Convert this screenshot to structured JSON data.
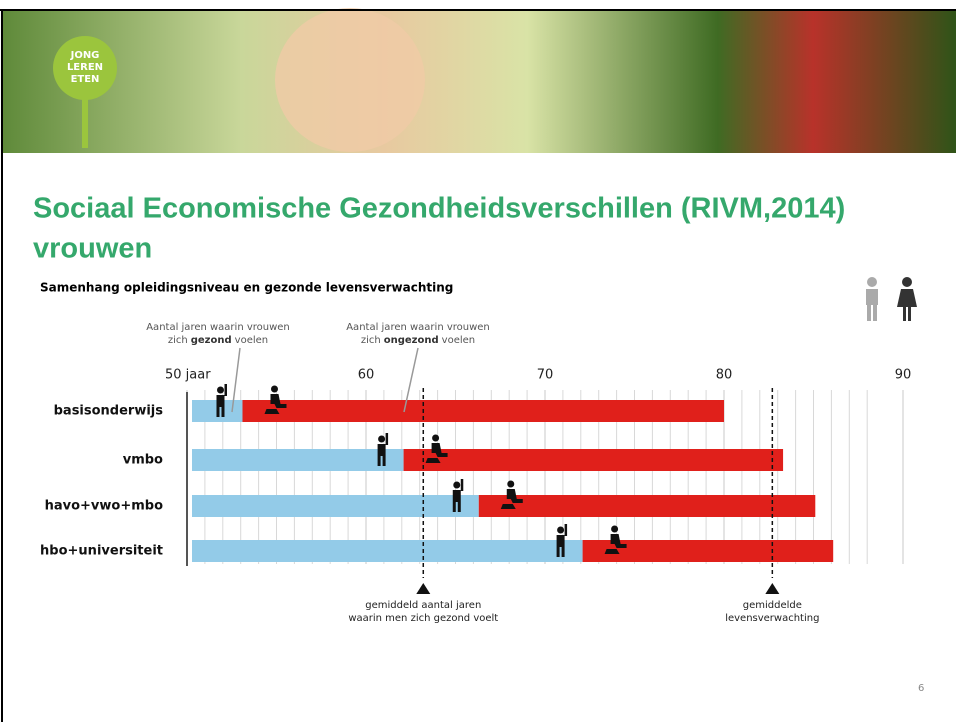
{
  "logo": [
    "JONG",
    "LEREN",
    "ETEN"
  ],
  "title": "Sociaal Economische Gezondheidsverschillen (RIVM,2014)",
  "title_line2": "vrouwen",
  "page_number": "6",
  "chart_data": {
    "type": "range-bar",
    "title": "Samenhang opleidingsniveau en gezonde levensverwachting",
    "categories": [
      "basisonderwijs",
      "vmbo",
      "havo+vwo+mbo",
      "hbo+universiteit"
    ],
    "series": [
      {
        "color": "#93cbe8",
        "values": [
          53.1,
          62.1,
          66.3,
          72.1
        ]
      },
      {
        "color": "#e0201b",
        "values": [
          80.0,
          83.3,
          85.1,
          86.1
        ]
      }
    ],
    "xlim": [
      50,
      90
    ],
    "xticks": [
      {
        "value": 50,
        "label": "50 jaar"
      },
      60,
      70,
      80,
      90
    ],
    "xticks_minor": [
      51,
      52,
      53,
      54,
      55,
      56,
      57,
      58,
      59,
      61,
      62,
      63,
      64,
      65,
      66,
      67,
      68,
      69,
      71,
      72,
      73,
      74,
      75,
      76,
      77,
      78,
      79,
      81,
      82,
      83,
      84,
      85,
      86,
      87,
      88
    ],
    "grid": true,
    "annotations": [
      {
        "line1": "Aantal jaren waarin vrouwen",
        "line2_start": "zich",
        "line2_bold": "gezond",
        "line2_end": "voelen"
      },
      {
        "line1": "Aantal jaren waarin vrouwen",
        "line2_start": "zich",
        "line2_bold": "ongezond",
        "line2_end": "voelen"
      }
    ],
    "reference_lines": [
      {
        "value": 63.2,
        "line1": "gemiddeld aantal jaren",
        "line2": "waarin men zich gezond voelt"
      },
      {
        "value": 82.7,
        "line1": "gemiddelde",
        "line2": "levensverwachting"
      }
    ]
  }
}
